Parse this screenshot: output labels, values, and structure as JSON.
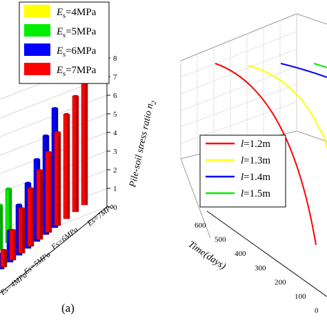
{
  "chart_data": [
    {
      "type": "bar",
      "projection": "3d",
      "panel_label": "(a)",
      "zlabel": "Pile-soil stress ratio n",
      "zlabel_subscript": "2",
      "zlim": [
        0,
        8
      ],
      "z_ticks": [
        "0",
        "1",
        "2",
        "3",
        "4",
        "5",
        "6",
        "7",
        "8"
      ],
      "category_axis_labels": [
        "Es=4MPa",
        "Es=5MPa",
        "Es=6MPa",
        "Es=7MPa"
      ],
      "legend": {
        "placement": "top-left",
        "entries": [
          {
            "symbol": "E",
            "subscript": "s",
            "text": "=4MPa",
            "color": "#ffff00"
          },
          {
            "symbol": "E",
            "subscript": "s",
            "text": "=5MPa",
            "color": "#00ee00"
          },
          {
            "symbol": "E",
            "subscript": "s",
            "text": "=6MPa",
            "color": "#0000ff"
          },
          {
            "symbol": "E",
            "subscript": "s",
            "text": "=7MPa",
            "color": "#ff0000"
          }
        ]
      },
      "series": [
        {
          "name": "Es=4MPa",
          "color": "#ffff00",
          "values": []
        },
        {
          "name": "Es=5MPa",
          "color": "#00ee00",
          "values": [
            2.9,
            2.4,
            1.8,
            1.2
          ]
        },
        {
          "name": "Es=6MPa",
          "color": "#0000ff",
          "values": [
            6.4,
            5.3,
            4.4,
            3.5,
            2.7,
            1.7,
            0.8
          ]
        },
        {
          "name": "Es=7MPa",
          "color": "#ff0000",
          "values": [
            7.0,
            6.2,
            5.6,
            5.0,
            4.3,
            3.7,
            3.1,
            2.4,
            1.6,
            0.9
          ]
        }
      ]
    },
    {
      "type": "line",
      "projection": "3d",
      "ylabel": "Time(days)",
      "y_ticks": [
        "0",
        "100",
        "200",
        "300",
        "400",
        "500",
        "600"
      ],
      "legend": {
        "placement": "left",
        "entries": [
          {
            "symbol": "l",
            "text": "=1.2m",
            "color": "#ff0000"
          },
          {
            "symbol": "l",
            "text": "=1.3m",
            "color": "#ffff00"
          },
          {
            "symbol": "l",
            "text": "=1.4m",
            "color": "#0000ff"
          },
          {
            "symbol": "l",
            "text": "=1.5m",
            "color": "#00ee00"
          }
        ]
      },
      "series": [
        {
          "name": "l=1.2m",
          "color": "#ff0000",
          "values": [
            0,
            100,
            200,
            300,
            400,
            500,
            600
          ]
        },
        {
          "name": "l=1.3m",
          "color": "#ffff00",
          "values": [
            0,
            50,
            100,
            150
          ]
        },
        {
          "name": "l=1.4m",
          "color": "#0000ff",
          "values": [
            0,
            50,
            100
          ]
        },
        {
          "name": "l=1.5m",
          "color": "#00ee00",
          "values": [
            0,
            50
          ]
        }
      ]
    }
  ]
}
